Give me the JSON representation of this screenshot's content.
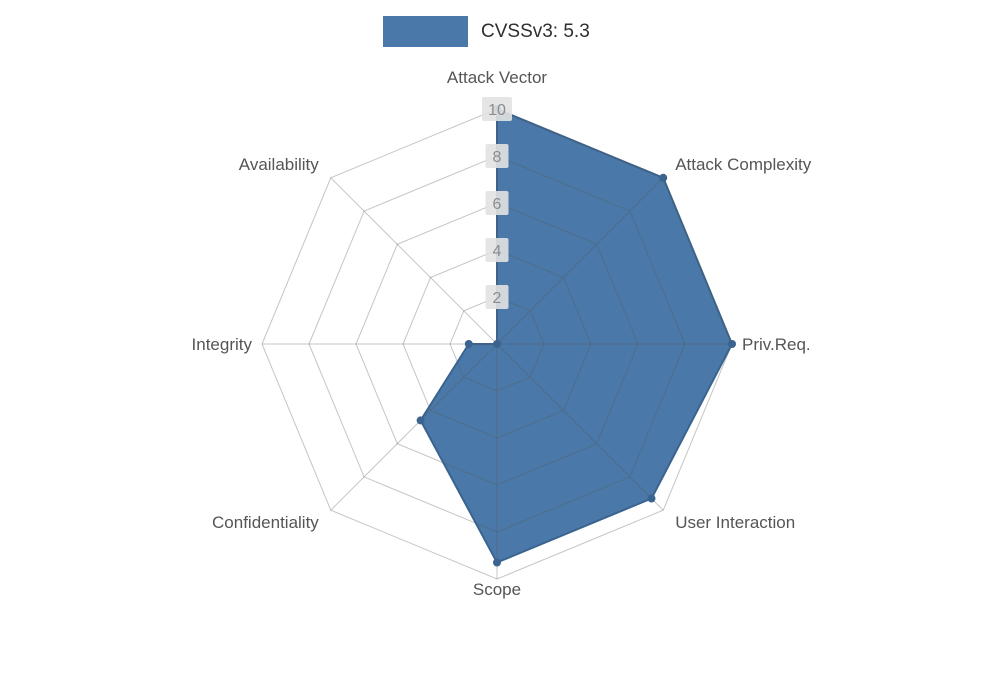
{
  "chart_data": {
    "type": "radar",
    "legend": {
      "label": "CVSSv3: 5.3",
      "swatch_color": "#4a78a8"
    },
    "axes": [
      "Attack Vector",
      "Attack Complexity",
      "Priv.Req.",
      "User Interaction",
      "Scope",
      "Confidentiality",
      "Integrity",
      "Availability"
    ],
    "values": [
      10,
      10,
      10,
      9.3,
      9.3,
      4.6,
      1.2,
      0
    ],
    "ticks": [
      2,
      4,
      6,
      8,
      10
    ],
    "tick_labels": [
      "2",
      "4",
      "6",
      "8",
      "10"
    ],
    "range": [
      0,
      10
    ],
    "grid": true,
    "legend_position": "top",
    "fill_color": "#4a78a8",
    "line_color": "#3a648f",
    "grid_color": "rgba(90,90,90,0.35)",
    "tick_label_color": "#8c8c8c",
    "tick_label_bg": "#e2e2e2",
    "axis_label_color": "#555555",
    "background_color": "#ffffff"
  }
}
